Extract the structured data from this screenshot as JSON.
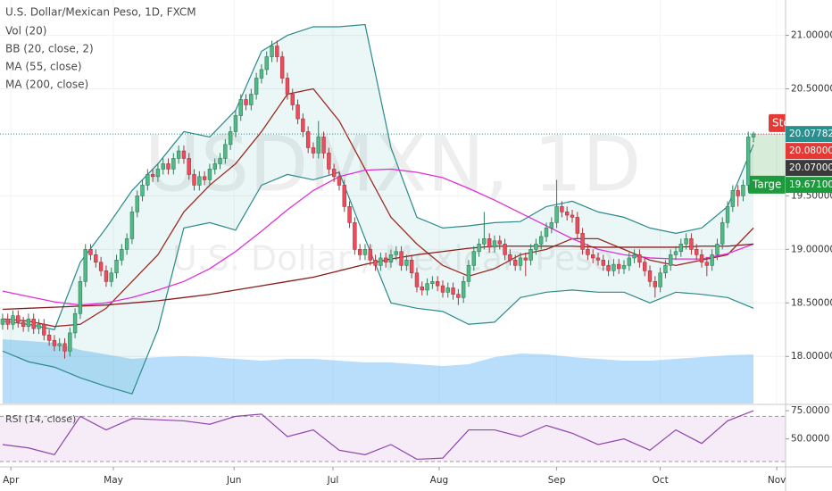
{
  "chart_data": {
    "type": "candlestick",
    "title": "U.S. Dollar/Mexican Peso, 1D, FXCM",
    "watermark": "USDMXN, 1D",
    "watermark_sub": "U.S. Dollar / Mexican Peso",
    "indicator_labels": [
      "Vol (20)",
      "BB (20, close, 2)",
      "MA (55, close)",
      "MA (200, close)"
    ],
    "up_color": "#53b987",
    "down_color": "#eb4d5c",
    "candles": [
      [
        18.3,
        18.4,
        18.25,
        18.35
      ],
      [
        18.35,
        18.4,
        18.25,
        18.3
      ],
      [
        18.3,
        18.43,
        18.25,
        18.38
      ],
      [
        18.38,
        18.43,
        18.27,
        18.32
      ],
      [
        18.32,
        18.37,
        18.23,
        18.28
      ],
      [
        18.28,
        18.4,
        18.23,
        18.35
      ],
      [
        18.35,
        18.4,
        18.21,
        18.26
      ],
      [
        18.26,
        18.35,
        18.21,
        18.3
      ],
      [
        18.3,
        18.35,
        18.15,
        18.2
      ],
      [
        18.2,
        18.25,
        18.1,
        18.15
      ],
      [
        18.15,
        18.2,
        18.05,
        18.1
      ],
      [
        18.1,
        18.17,
        18.05,
        18.12
      ],
      [
        18.12,
        18.17,
        17.98,
        18.05
      ],
      [
        18.05,
        18.27,
        18.0,
        18.22
      ],
      [
        18.22,
        18.45,
        18.17,
        18.4
      ],
      [
        18.4,
        18.75,
        18.35,
        18.7
      ],
      [
        18.7,
        19.05,
        18.65,
        19.0
      ],
      [
        19.0,
        19.05,
        18.9,
        18.95
      ],
      [
        18.95,
        19.0,
        18.83,
        18.88
      ],
      [
        18.88,
        18.93,
        18.75,
        18.8
      ],
      [
        18.8,
        18.85,
        18.65,
        18.7
      ],
      [
        18.7,
        18.83,
        18.65,
        18.78
      ],
      [
        18.78,
        18.95,
        18.73,
        18.9
      ],
      [
        18.9,
        19.05,
        18.85,
        19.0
      ],
      [
        19.0,
        19.15,
        18.95,
        19.1
      ],
      [
        19.1,
        19.4,
        19.05,
        19.35
      ],
      [
        19.35,
        19.55,
        19.3,
        19.5
      ],
      [
        19.5,
        19.65,
        19.45,
        19.6
      ],
      [
        19.6,
        19.75,
        19.55,
        19.7
      ],
      [
        19.7,
        19.75,
        19.63,
        19.68
      ],
      [
        19.68,
        19.8,
        19.63,
        19.75
      ],
      [
        19.75,
        19.85,
        19.7,
        19.8
      ],
      [
        19.8,
        19.85,
        19.7,
        19.75
      ],
      [
        19.75,
        19.9,
        19.7,
        19.85
      ],
      [
        19.85,
        19.97,
        19.8,
        19.92
      ],
      [
        19.92,
        19.97,
        19.8,
        19.85
      ],
      [
        19.85,
        19.9,
        19.65,
        19.7
      ],
      [
        19.7,
        19.75,
        19.55,
        19.6
      ],
      [
        19.6,
        19.73,
        19.55,
        19.68
      ],
      [
        19.68,
        19.73,
        19.6,
        19.65
      ],
      [
        19.65,
        19.8,
        19.6,
        19.75
      ],
      [
        19.75,
        19.85,
        19.7,
        19.8
      ],
      [
        19.8,
        19.9,
        19.75,
        19.85
      ],
      [
        19.85,
        20.03,
        19.8,
        19.98
      ],
      [
        19.98,
        20.15,
        19.93,
        20.1
      ],
      [
        20.1,
        20.3,
        20.05,
        20.25
      ],
      [
        20.25,
        20.45,
        20.2,
        20.4
      ],
      [
        20.4,
        20.45,
        20.3,
        20.35
      ],
      [
        20.35,
        20.5,
        20.3,
        20.45
      ],
      [
        20.45,
        20.65,
        20.4,
        20.6
      ],
      [
        20.6,
        20.73,
        20.55,
        20.68
      ],
      [
        20.68,
        20.85,
        20.63,
        20.8
      ],
      [
        20.8,
        20.95,
        20.75,
        20.9
      ],
      [
        20.9,
        20.95,
        20.75,
        20.8
      ],
      [
        20.8,
        20.85,
        20.55,
        20.6
      ],
      [
        20.6,
        20.65,
        20.4,
        20.45
      ],
      [
        20.45,
        20.5,
        20.3,
        20.35
      ],
      [
        20.35,
        20.4,
        20.17,
        20.22
      ],
      [
        20.22,
        20.27,
        20.05,
        20.1
      ],
      [
        20.1,
        20.15,
        19.9,
        19.95
      ],
      [
        19.95,
        20.0,
        19.85,
        19.9
      ],
      [
        19.9,
        20.2,
        19.85,
        20.05
      ],
      [
        20.05,
        20.1,
        19.85,
        19.9
      ],
      [
        19.9,
        19.95,
        19.7,
        19.75
      ],
      [
        19.75,
        19.8,
        19.63,
        19.68
      ],
      [
        19.68,
        19.73,
        19.55,
        19.6
      ],
      [
        19.6,
        19.65,
        19.35,
        19.4
      ],
      [
        19.4,
        19.45,
        19.2,
        19.25
      ],
      [
        19.25,
        19.3,
        18.95,
        19.0
      ],
      [
        19.0,
        19.05,
        18.9,
        18.95
      ],
      [
        18.95,
        19.05,
        18.9,
        19.0
      ],
      [
        19.0,
        19.05,
        18.85,
        18.9
      ],
      [
        18.9,
        18.95,
        18.8,
        18.85
      ],
      [
        18.85,
        18.97,
        18.8,
        18.92
      ],
      [
        18.92,
        18.97,
        18.83,
        18.88
      ],
      [
        18.88,
        19.0,
        18.83,
        18.95
      ],
      [
        18.95,
        19.03,
        18.9,
        18.98
      ],
      [
        18.98,
        19.03,
        18.8,
        18.85
      ],
      [
        18.85,
        18.95,
        18.8,
        18.9
      ],
      [
        18.9,
        18.95,
        18.73,
        18.78
      ],
      [
        18.78,
        18.83,
        18.6,
        18.65
      ],
      [
        18.65,
        18.7,
        18.57,
        18.62
      ],
      [
        18.62,
        18.73,
        18.57,
        18.68
      ],
      [
        18.68,
        18.75,
        18.63,
        18.7
      ],
      [
        18.7,
        18.75,
        18.61,
        18.66
      ],
      [
        18.66,
        18.71,
        18.55,
        18.6
      ],
      [
        18.6,
        18.69,
        18.55,
        18.64
      ],
      [
        18.64,
        18.69,
        18.53,
        18.58
      ],
      [
        18.58,
        18.63,
        18.48,
        18.55
      ],
      [
        18.55,
        18.75,
        18.5,
        18.7
      ],
      [
        18.7,
        18.9,
        18.65,
        18.85
      ],
      [
        18.85,
        19.03,
        18.8,
        18.98
      ],
      [
        18.98,
        19.1,
        18.93,
        19.05
      ],
      [
        19.05,
        19.35,
        19.0,
        19.1
      ],
      [
        19.1,
        19.15,
        18.97,
        19.02
      ],
      [
        19.02,
        19.13,
        18.97,
        19.08
      ],
      [
        19.08,
        19.13,
        19.0,
        19.05
      ],
      [
        19.05,
        19.1,
        18.9,
        18.95
      ],
      [
        18.95,
        19.0,
        18.85,
        18.9
      ],
      [
        18.9,
        18.95,
        18.8,
        18.85
      ],
      [
        18.85,
        18.97,
        18.8,
        18.92
      ],
      [
        18.92,
        18.97,
        18.75,
        18.9
      ],
      [
        18.9,
        19.05,
        18.85,
        19.0
      ],
      [
        19.0,
        19.1,
        18.95,
        19.05
      ],
      [
        19.05,
        19.17,
        19.0,
        19.12
      ],
      [
        19.12,
        19.25,
        19.07,
        19.2
      ],
      [
        19.2,
        19.3,
        19.15,
        19.25
      ],
      [
        19.25,
        19.65,
        19.2,
        19.4
      ],
      [
        19.4,
        19.45,
        19.3,
        19.35
      ],
      [
        19.35,
        19.4,
        19.27,
        19.32
      ],
      [
        19.32,
        19.37,
        19.25,
        19.3
      ],
      [
        19.3,
        19.35,
        19.1,
        19.15
      ],
      [
        19.15,
        19.2,
        18.95,
        19.0
      ],
      [
        19.0,
        19.05,
        18.9,
        18.95
      ],
      [
        18.95,
        19.0,
        18.87,
        18.92
      ],
      [
        18.92,
        18.97,
        18.85,
        18.9
      ],
      [
        18.9,
        18.95,
        18.8,
        18.85
      ],
      [
        18.85,
        18.9,
        18.75,
        18.8
      ],
      [
        18.8,
        18.91,
        18.75,
        18.86
      ],
      [
        18.86,
        18.91,
        18.77,
        18.82
      ],
      [
        18.82,
        18.9,
        18.77,
        18.85
      ],
      [
        18.85,
        18.97,
        18.8,
        18.92
      ],
      [
        18.92,
        19.0,
        18.87,
        18.95
      ],
      [
        18.95,
        19.0,
        18.83,
        18.88
      ],
      [
        18.88,
        18.93,
        18.75,
        18.8
      ],
      [
        18.8,
        18.85,
        18.65,
        18.7
      ],
      [
        18.7,
        18.75,
        18.55,
        18.65
      ],
      [
        18.65,
        18.83,
        18.6,
        18.78
      ],
      [
        18.78,
        18.9,
        18.73,
        18.85
      ],
      [
        18.85,
        19.0,
        18.8,
        18.95
      ],
      [
        18.95,
        19.03,
        18.9,
        18.98
      ],
      [
        18.98,
        19.1,
        18.93,
        19.05
      ],
      [
        19.05,
        19.15,
        19.0,
        19.1
      ],
      [
        19.1,
        19.15,
        18.95,
        19.0
      ],
      [
        19.0,
        19.05,
        18.9,
        18.95
      ],
      [
        18.95,
        19.0,
        18.83,
        18.88
      ],
      [
        18.88,
        18.93,
        18.75,
        18.85
      ],
      [
        18.85,
        19.0,
        18.8,
        18.95
      ],
      [
        18.95,
        19.1,
        18.9,
        19.05
      ],
      [
        19.05,
        19.3,
        19.0,
        19.25
      ],
      [
        19.25,
        19.45,
        19.2,
        19.4
      ],
      [
        19.4,
        19.6,
        19.35,
        19.55
      ],
      [
        19.55,
        19.6,
        19.4,
        19.5
      ],
      [
        19.5,
        19.65,
        19.45,
        19.6
      ],
      [
        19.6,
        20.1,
        19.55,
        20.05
      ],
      [
        20.05,
        20.1,
        20.0,
        20.08
      ]
    ],
    "xlim": [
      -0.5,
      151.2
    ],
    "xticks": [
      {
        "value": 1.6,
        "label": "Apr"
      },
      {
        "value": 21.4,
        "label": "May"
      },
      {
        "value": 44.7,
        "label": "Jun"
      },
      {
        "value": 63.8,
        "label": "Jul"
      },
      {
        "value": 84.3,
        "label": "Aug"
      },
      {
        "value": 107,
        "label": "Sep"
      },
      {
        "value": 127,
        "label": "Oct"
      },
      {
        "value": 149.5,
        "label": "Nov"
      }
    ],
    "ylim": [
      17.56,
      21.33
    ],
    "yticks": [
      {
        "value": 21,
        "label": "21.00000"
      },
      {
        "value": 20.5,
        "label": "20.50000"
      },
      {
        "value": 19.5,
        "label": "19.50000"
      },
      {
        "value": 19,
        "label": "19.00000"
      },
      {
        "value": 18.5,
        "label": "18.50000"
      },
      {
        "value": 18,
        "label": "18.00000"
      }
    ],
    "overlay_x": [
      0,
      5,
      10,
      15,
      20,
      25,
      30,
      35,
      40,
      45,
      50,
      55,
      60,
      65,
      70,
      75,
      80,
      85,
      90,
      95,
      100,
      105,
      110,
      115,
      120,
      125,
      130,
      135,
      140,
      145
    ],
    "bb_upper": {
      "color": "#2b8a8a",
      "values": [
        18.33,
        18.3,
        18.25,
        18.88,
        19.2,
        19.55,
        19.8,
        20.1,
        20.05,
        20.3,
        20.85,
        21.0,
        21.08,
        21.08,
        21.1,
        19.95,
        19.3,
        19.2,
        19.22,
        19.25,
        19.26,
        19.4,
        19.45,
        19.35,
        19.3,
        19.2,
        19.15,
        19.2,
        19.4,
        19.98
      ]
    },
    "bb_lower": {
      "color": "#2b8a8a",
      "values": [
        18.05,
        17.95,
        17.9,
        17.8,
        17.72,
        17.65,
        18.25,
        19.2,
        19.25,
        19.18,
        19.6,
        19.7,
        19.65,
        19.72,
        19.1,
        18.5,
        18.45,
        18.42,
        18.3,
        18.32,
        18.55,
        18.6,
        18.62,
        18.6,
        18.6,
        18.5,
        18.6,
        18.58,
        18.55,
        18.45
      ]
    },
    "bb_fill": "rgba(38,166,154,0.09)",
    "lines": [
      {
        "color": "#9c2a22",
        "values": [
          18.35,
          18.33,
          18.28,
          18.3,
          18.45,
          18.7,
          18.95,
          19.35,
          19.6,
          19.8,
          20.1,
          20.45,
          20.5,
          20.2,
          19.75,
          19.3,
          19.05,
          18.85,
          18.75,
          18.82,
          18.95,
          19.0,
          19.1,
          19.1,
          19.0,
          18.9,
          18.85,
          18.9,
          18.95,
          19.2
        ]
      },
      {
        "color": "#e030d8",
        "values": [
          18.61,
          18.56,
          18.51,
          18.48,
          18.5,
          18.55,
          18.62,
          18.7,
          18.82,
          18.98,
          19.17,
          19.37,
          19.55,
          19.68,
          19.74,
          19.75,
          19.72,
          19.67,
          19.57,
          19.46,
          19.34,
          19.22,
          19.1,
          19.0,
          18.95,
          18.92,
          18.91,
          18.91,
          18.96,
          19.05
        ]
      },
      {
        "color": "#8b1a1a",
        "values": [
          18.44,
          18.45,
          18.46,
          18.47,
          18.48,
          18.5,
          18.52,
          18.55,
          18.58,
          18.62,
          18.66,
          18.7,
          18.74,
          18.8,
          18.86,
          18.91,
          18.95,
          18.98,
          19.01,
          19.03,
          19.03,
          19.03,
          19.03,
          19.02,
          19.02,
          19.02,
          19.02,
          19.03,
          19.03,
          19.05
        ]
      }
    ],
    "volume": {
      "color": "rgba(100,181,246,0.45)",
      "vlim": [
        0,
        100
      ],
      "values": [
        72,
        70,
        68,
        60,
        55,
        50,
        52,
        53,
        52,
        50,
        48,
        50,
        50,
        48,
        46,
        46,
        44,
        42,
        44,
        52,
        56,
        55,
        52,
        50,
        48,
        48,
        50,
        52,
        54,
        55
      ]
    },
    "last_price_line": {
      "value": 20.07782,
      "color": "#2a8f8f"
    },
    "price_labels": [
      {
        "value": 20.07782,
        "color": "#2a8f8f"
      },
      {
        "value": 20.08,
        "label": "20.08000",
        "color": "#e53935"
      },
      {
        "value": 20.07,
        "label": "20.07000",
        "color": "#3a3a3a"
      },
      {
        "value": 19.671,
        "label": "19.67100",
        "color": "#1e9a3e"
      }
    ],
    "position": {
      "start": 144.5,
      "entry": 20.07,
      "stop": 20.08,
      "target": 19.671,
      "stop_label": "Sto",
      "target_label": "Targe"
    },
    "rsi": {
      "label": "RSI (14, close)",
      "color": "#8e44ad",
      "ylim": [
        26,
        79
      ],
      "yticks": [
        {
          "value": 75,
          "label": "75.0000"
        },
        {
          "value": 50,
          "label": "50.0000"
        }
      ],
      "band": [
        30,
        70
      ],
      "values": [
        45,
        42,
        36,
        70,
        58,
        68,
        67,
        66,
        63,
        70,
        72,
        52,
        58,
        40,
        36,
        45,
        32,
        33,
        58,
        58,
        52,
        62,
        55,
        45,
        50,
        40,
        58,
        46,
        66,
        75
      ]
    }
  }
}
